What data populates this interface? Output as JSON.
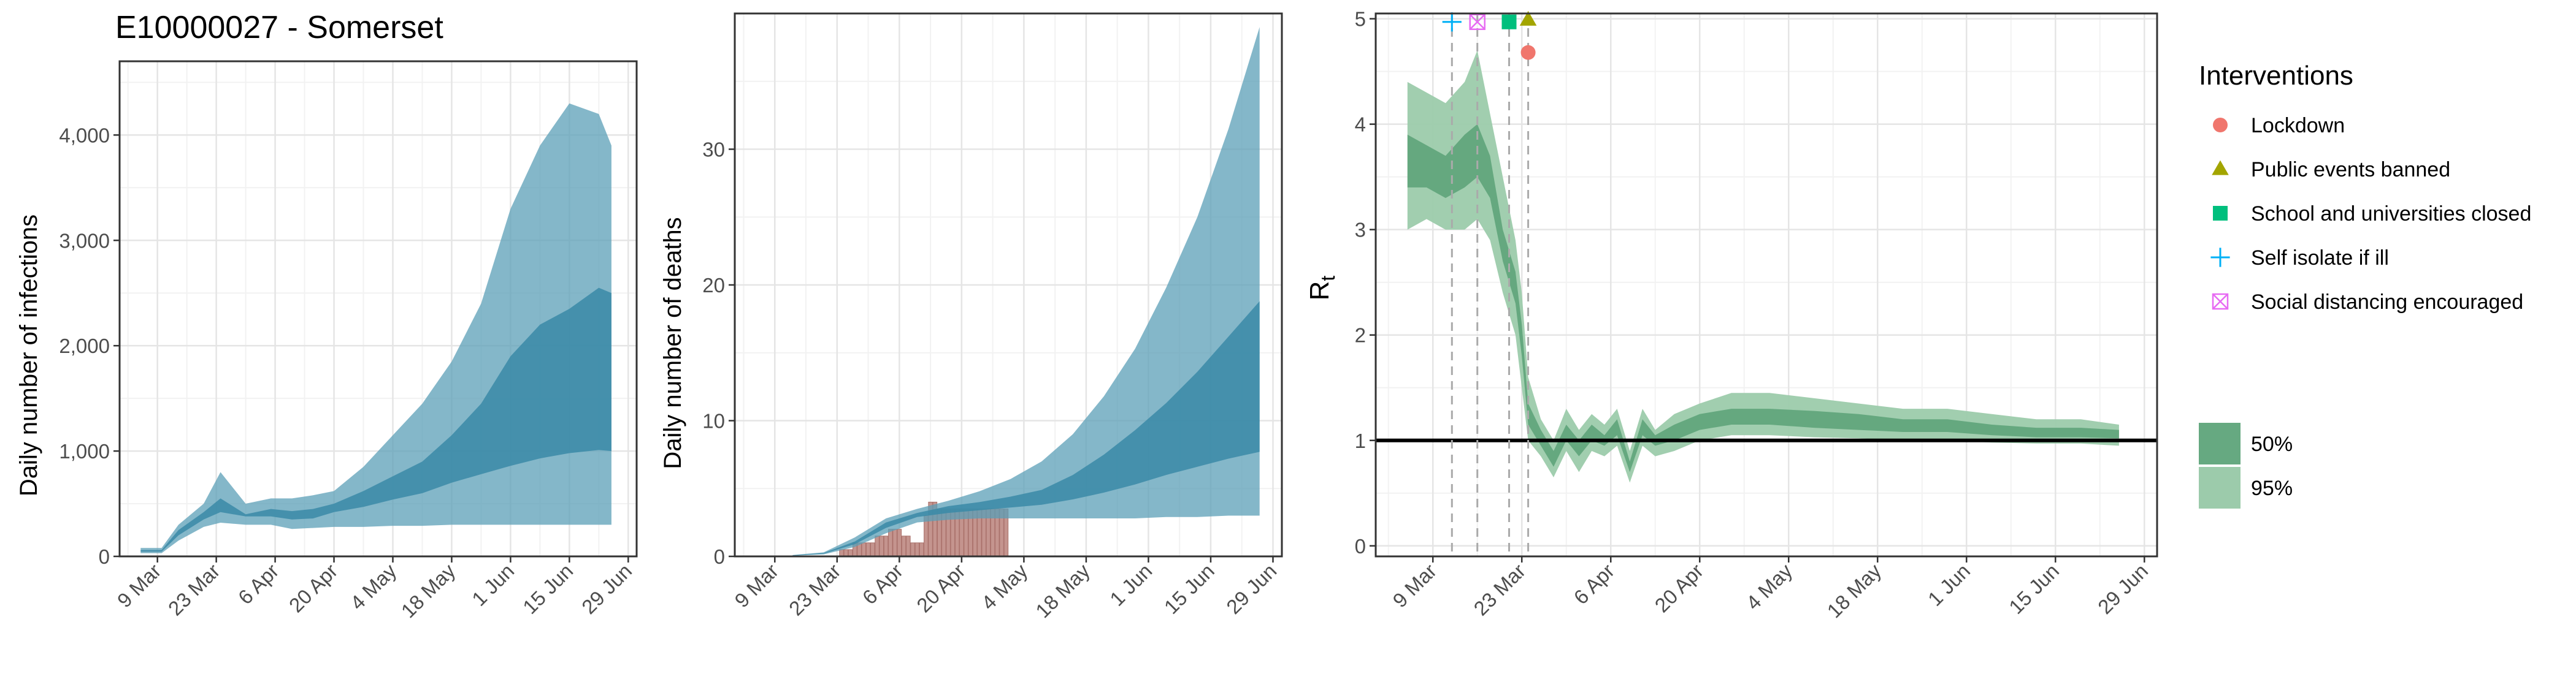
{
  "title": "E10000027 - Somerset",
  "x_ticks": [
    "9 Mar",
    "23 Mar",
    "6 Apr",
    "20 Apr",
    "4 May",
    "18 May",
    "1 Jun",
    "15 Jun",
    "29 Jun"
  ],
  "colors": {
    "infections": "#5b9fb7",
    "infections_band": "#3a8aa7",
    "deaths_bar": "#c4948e",
    "rt_band50": "#5ea47a",
    "rt_band95": "#9ccbab",
    "lockdown": "#f0766d",
    "public_events": "#a3a500",
    "school": "#00bf7d",
    "self_isolate": "#00b0f6",
    "social_distancing": "#e76bf3"
  },
  "chart_data": [
    {
      "type": "area",
      "ylabel": "Daily number of infections",
      "ylim": [
        0,
        4700
      ],
      "y_ticks": [
        0,
        1000,
        2000,
        3000,
        4000
      ],
      "y_tick_labels": [
        "0",
        "1,000",
        "2,000",
        "3,000",
        "4,000"
      ],
      "series": [
        {
          "x": [
            "2020-03-05",
            "2020-03-10",
            "2020-03-14",
            "2020-03-20",
            "2020-03-24",
            "2020-03-30",
            "2020-04-05",
            "2020-04-10",
            "2020-04-15",
            "2020-04-20",
            "2020-04-27",
            "2020-05-04",
            "2020-05-11",
            "2020-05-18",
            "2020-05-25",
            "2020-06-01",
            "2020-06-08",
            "2020-06-15",
            "2020-06-22",
            "2020-06-25"
          ],
          "upper95": [
            80,
            80,
            300,
            500,
            800,
            500,
            550,
            550,
            580,
            620,
            850,
            1150,
            1450,
            1850,
            2400,
            3300,
            3900,
            4300,
            4200,
            3900
          ],
          "upper50": [
            60,
            60,
            250,
            420,
            550,
            400,
            450,
            430,
            450,
            500,
            620,
            760,
            900,
            1150,
            1450,
            1900,
            2200,
            2350,
            2550,
            2500
          ],
          "lower50": [
            45,
            45,
            200,
            350,
            420,
            380,
            380,
            350,
            360,
            420,
            470,
            540,
            600,
            700,
            780,
            860,
            930,
            980,
            1010,
            1000
          ],
          "lower95": [
            30,
            30,
            150,
            280,
            320,
            300,
            300,
            260,
            270,
            280,
            280,
            290,
            290,
            300,
            300,
            300,
            300,
            300,
            300,
            300
          ]
        }
      ]
    },
    {
      "type": "bar",
      "ylabel": "Daily number of deaths",
      "ylim": [
        0,
        40
      ],
      "y_ticks": [
        0,
        10,
        20,
        30
      ],
      "y_tick_labels": [
        "0",
        "10",
        "20",
        "30"
      ],
      "bars": {
        "x": [
          "2020-03-24",
          "2020-03-25",
          "2020-03-26",
          "2020-03-27",
          "2020-03-28",
          "2020-03-29",
          "2020-03-30",
          "2020-03-31",
          "2020-04-01",
          "2020-04-02",
          "2020-04-03",
          "2020-04-04",
          "2020-04-05",
          "2020-04-06",
          "2020-04-07",
          "2020-04-08",
          "2020-04-09",
          "2020-04-10",
          "2020-04-11",
          "2020-04-12",
          "2020-04-13",
          "2020-04-14",
          "2020-04-15",
          "2020-04-16",
          "2020-04-17",
          "2020-04-18",
          "2020-04-19",
          "2020-04-20",
          "2020-04-21",
          "2020-04-22",
          "2020-04-23",
          "2020-04-24",
          "2020-04-25",
          "2020-04-26",
          "2020-04-27",
          "2020-04-28",
          "2020-04-29",
          "2020-04-30"
        ],
        "values": [
          0.5,
          0.5,
          0.5,
          1,
          1,
          1,
          1,
          1,
          1.5,
          1.5,
          1.5,
          2,
          2,
          2,
          1.5,
          1.5,
          1,
          1,
          1,
          3,
          4,
          4,
          3.5,
          3.5,
          3.5,
          3.5,
          3.5,
          3.5,
          3.5,
          3.5,
          3.5,
          3.5,
          3.5,
          3.5,
          3.5,
          3.5,
          3.5,
          3.5
        ]
      },
      "series": [
        {
          "x": [
            "2020-03-13",
            "2020-03-20",
            "2020-03-27",
            "2020-04-03",
            "2020-04-10",
            "2020-04-17",
            "2020-04-24",
            "2020-05-01",
            "2020-05-08",
            "2020-05-15",
            "2020-05-22",
            "2020-05-29",
            "2020-06-05",
            "2020-06-12",
            "2020-06-19",
            "2020-06-26"
          ],
          "upper95": [
            0.1,
            0.3,
            1.4,
            2.8,
            3.5,
            4.1,
            4.8,
            5.7,
            7.0,
            9.0,
            11.8,
            15.3,
            19.8,
            25.0,
            31.5,
            39.0
          ],
          "upper50": [
            0.08,
            0.25,
            1.1,
            2.5,
            3.2,
            3.7,
            4.0,
            4.4,
            4.9,
            6.0,
            7.5,
            9.3,
            11.3,
            13.6,
            16.2,
            18.8
          ],
          "lower50": [
            0.06,
            0.2,
            0.9,
            2.1,
            2.9,
            3.2,
            3.4,
            3.6,
            3.8,
            4.2,
            4.7,
            5.3,
            6.0,
            6.6,
            7.2,
            7.7
          ],
          "lower95": [
            0.05,
            0.15,
            0.7,
            1.7,
            2.5,
            2.7,
            2.8,
            2.8,
            2.8,
            2.8,
            2.8,
            2.8,
            2.9,
            2.9,
            3.0,
            3.0
          ]
        }
      ]
    },
    {
      "type": "area",
      "ylabel": "R",
      "ylabel_subscript": "t",
      "ylim": [
        -0.1,
        5.05
      ],
      "y_ticks": [
        0,
        1,
        2,
        3,
        4,
        5
      ],
      "y_tick_labels": [
        "0",
        "1",
        "2",
        "3",
        "4",
        "5"
      ],
      "reference_line": 1,
      "series": [
        {
          "x": [
            "2020-03-05",
            "2020-03-08",
            "2020-03-11",
            "2020-03-14",
            "2020-03-16",
            "2020-03-18",
            "2020-03-20",
            "2020-03-22",
            "2020-03-23",
            "2020-03-24",
            "2020-03-26",
            "2020-03-28",
            "2020-03-30",
            "2020-04-01",
            "2020-04-03",
            "2020-04-05",
            "2020-04-07",
            "2020-04-09",
            "2020-04-11",
            "2020-04-13",
            "2020-04-16",
            "2020-04-20",
            "2020-04-25",
            "2020-05-01",
            "2020-05-08",
            "2020-05-15",
            "2020-05-22",
            "2020-05-29",
            "2020-06-05",
            "2020-06-12",
            "2020-06-19",
            "2020-06-25"
          ],
          "upper95": [
            4.4,
            4.3,
            4.2,
            4.4,
            4.7,
            4.1,
            3.5,
            2.9,
            2.4,
            1.6,
            1.2,
            1.0,
            1.3,
            1.1,
            1.25,
            1.15,
            1.3,
            0.9,
            1.3,
            1.1,
            1.25,
            1.35,
            1.45,
            1.45,
            1.4,
            1.35,
            1.3,
            1.3,
            1.25,
            1.2,
            1.2,
            1.15
          ],
          "upper50": [
            3.9,
            3.8,
            3.7,
            3.9,
            4.0,
            3.7,
            3.0,
            2.6,
            2.1,
            1.35,
            1.1,
            0.9,
            1.15,
            1.0,
            1.15,
            1.05,
            1.2,
            0.8,
            1.2,
            1.05,
            1.15,
            1.25,
            1.3,
            1.3,
            1.28,
            1.25,
            1.2,
            1.2,
            1.15,
            1.12,
            1.12,
            1.1
          ],
          "lower50": [
            3.4,
            3.4,
            3.3,
            3.4,
            3.5,
            3.3,
            2.7,
            2.3,
            1.8,
            1.15,
            0.95,
            0.75,
            1.0,
            0.85,
            1.0,
            0.95,
            1.05,
            0.7,
            1.05,
            0.95,
            1.0,
            1.1,
            1.15,
            1.15,
            1.12,
            1.1,
            1.08,
            1.08,
            1.05,
            1.03,
            1.03,
            1.02
          ],
          "lower95": [
            3.0,
            3.1,
            3.0,
            3.0,
            3.1,
            2.9,
            2.4,
            2.0,
            1.5,
            1.0,
            0.85,
            0.65,
            0.9,
            0.7,
            0.9,
            0.85,
            0.95,
            0.6,
            0.95,
            0.85,
            0.9,
            1.0,
            1.05,
            1.05,
            1.03,
            1.02,
            1.0,
            1.0,
            0.98,
            0.97,
            0.97,
            0.95
          ]
        }
      ],
      "interventions": [
        {
          "label": "Self isolate if ill",
          "date": "2020-03-12",
          "y": 4.97,
          "shape": "plus",
          "color_key": "self_isolate"
        },
        {
          "label": "Social distancing encouraged",
          "date": "2020-03-16",
          "y": 4.97,
          "shape": "square-cross",
          "color_key": "social_distancing"
        },
        {
          "label": "School and universities closed",
          "date": "2020-03-21",
          "y": 4.97,
          "shape": "square",
          "color_key": "school"
        },
        {
          "label": "Public events banned",
          "date": "2020-03-24",
          "y": 4.99,
          "shape": "triangle",
          "color_key": "public_events"
        },
        {
          "label": "Lockdown",
          "date": "2020-03-24",
          "y": 4.68,
          "shape": "circle",
          "color_key": "lockdown"
        }
      ]
    }
  ],
  "legend": {
    "title": "Interventions",
    "items": [
      {
        "label": "Lockdown",
        "shape": "circle",
        "color_key": "lockdown"
      },
      {
        "label": "Public events banned",
        "shape": "triangle",
        "color_key": "public_events"
      },
      {
        "label": "School and universities closed",
        "shape": "square",
        "color_key": "school"
      },
      {
        "label": "Self isolate if ill",
        "shape": "plus",
        "color_key": "self_isolate"
      },
      {
        "label": "Social distancing encouraged",
        "shape": "square-cross",
        "color_key": "social_distancing"
      }
    ],
    "bands": [
      {
        "label": "50%",
        "color_key": "rt_band50"
      },
      {
        "label": "95%",
        "color_key": "rt_band95"
      }
    ]
  }
}
